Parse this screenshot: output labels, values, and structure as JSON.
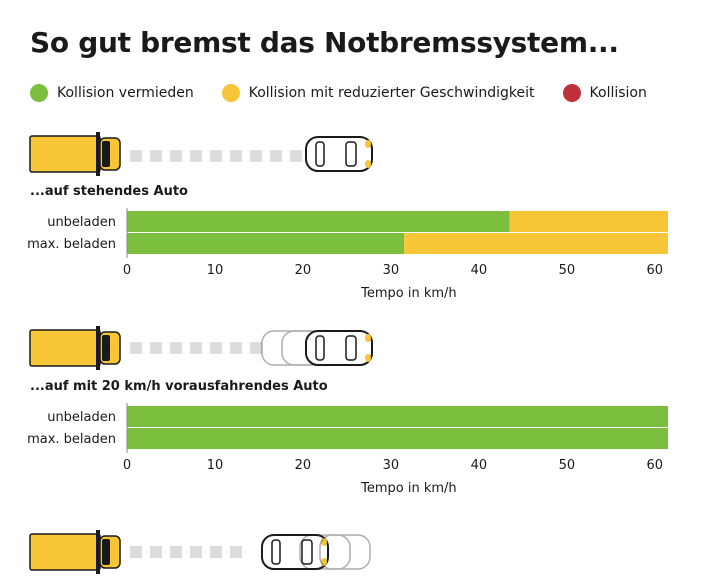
{
  "title": "So gut bremst das Notbremssystem...",
  "legend": [
    {
      "label": "Kollision vermieden",
      "color": "#7cbf3f"
    },
    {
      "label": "Kollision mit reduzierter Geschwindigkeit",
      "color": "#f6c636"
    },
    {
      "label": "Kollision",
      "color": "#c0323b"
    }
  ],
  "sections": [
    {
      "label": "...auf stehendes Auto"
    },
    {
      "label": "...auf mit 20 km/h vorausfahrendes Auto"
    }
  ],
  "chart_data": [
    {
      "type": "bar",
      "orientation": "horizontal",
      "stacked": true,
      "title": "...auf stehendes Auto",
      "categories": [
        "unbeladen",
        "max. beladen"
      ],
      "series": [
        {
          "name": "Kollision vermieden",
          "color": "#7cbf3f",
          "values": [
            43.5,
            31.5
          ]
        },
        {
          "name": "Kollision mit reduzierter Geschwindigkeit",
          "color": "#f6c636",
          "values": [
            18,
            30
          ]
        }
      ],
      "xlabel": "Tempo in km/h",
      "xlim": [
        0,
        61.5
      ],
      "xticks": [
        0,
        10,
        20,
        30,
        40,
        50,
        60
      ]
    },
    {
      "type": "bar",
      "orientation": "horizontal",
      "stacked": true,
      "title": "...auf mit 20 km/h vorausfahrendes Auto",
      "categories": [
        "unbeladen",
        "max. beladen"
      ],
      "series": [
        {
          "name": "Kollision vermieden",
          "color": "#7cbf3f",
          "values": [
            61.5,
            61.5
          ]
        }
      ],
      "xlabel": "Tempo in km/h",
      "xlim": [
        0,
        61.5
      ],
      "xticks": [
        0,
        10,
        20,
        30,
        40,
        50,
        60
      ]
    }
  ]
}
